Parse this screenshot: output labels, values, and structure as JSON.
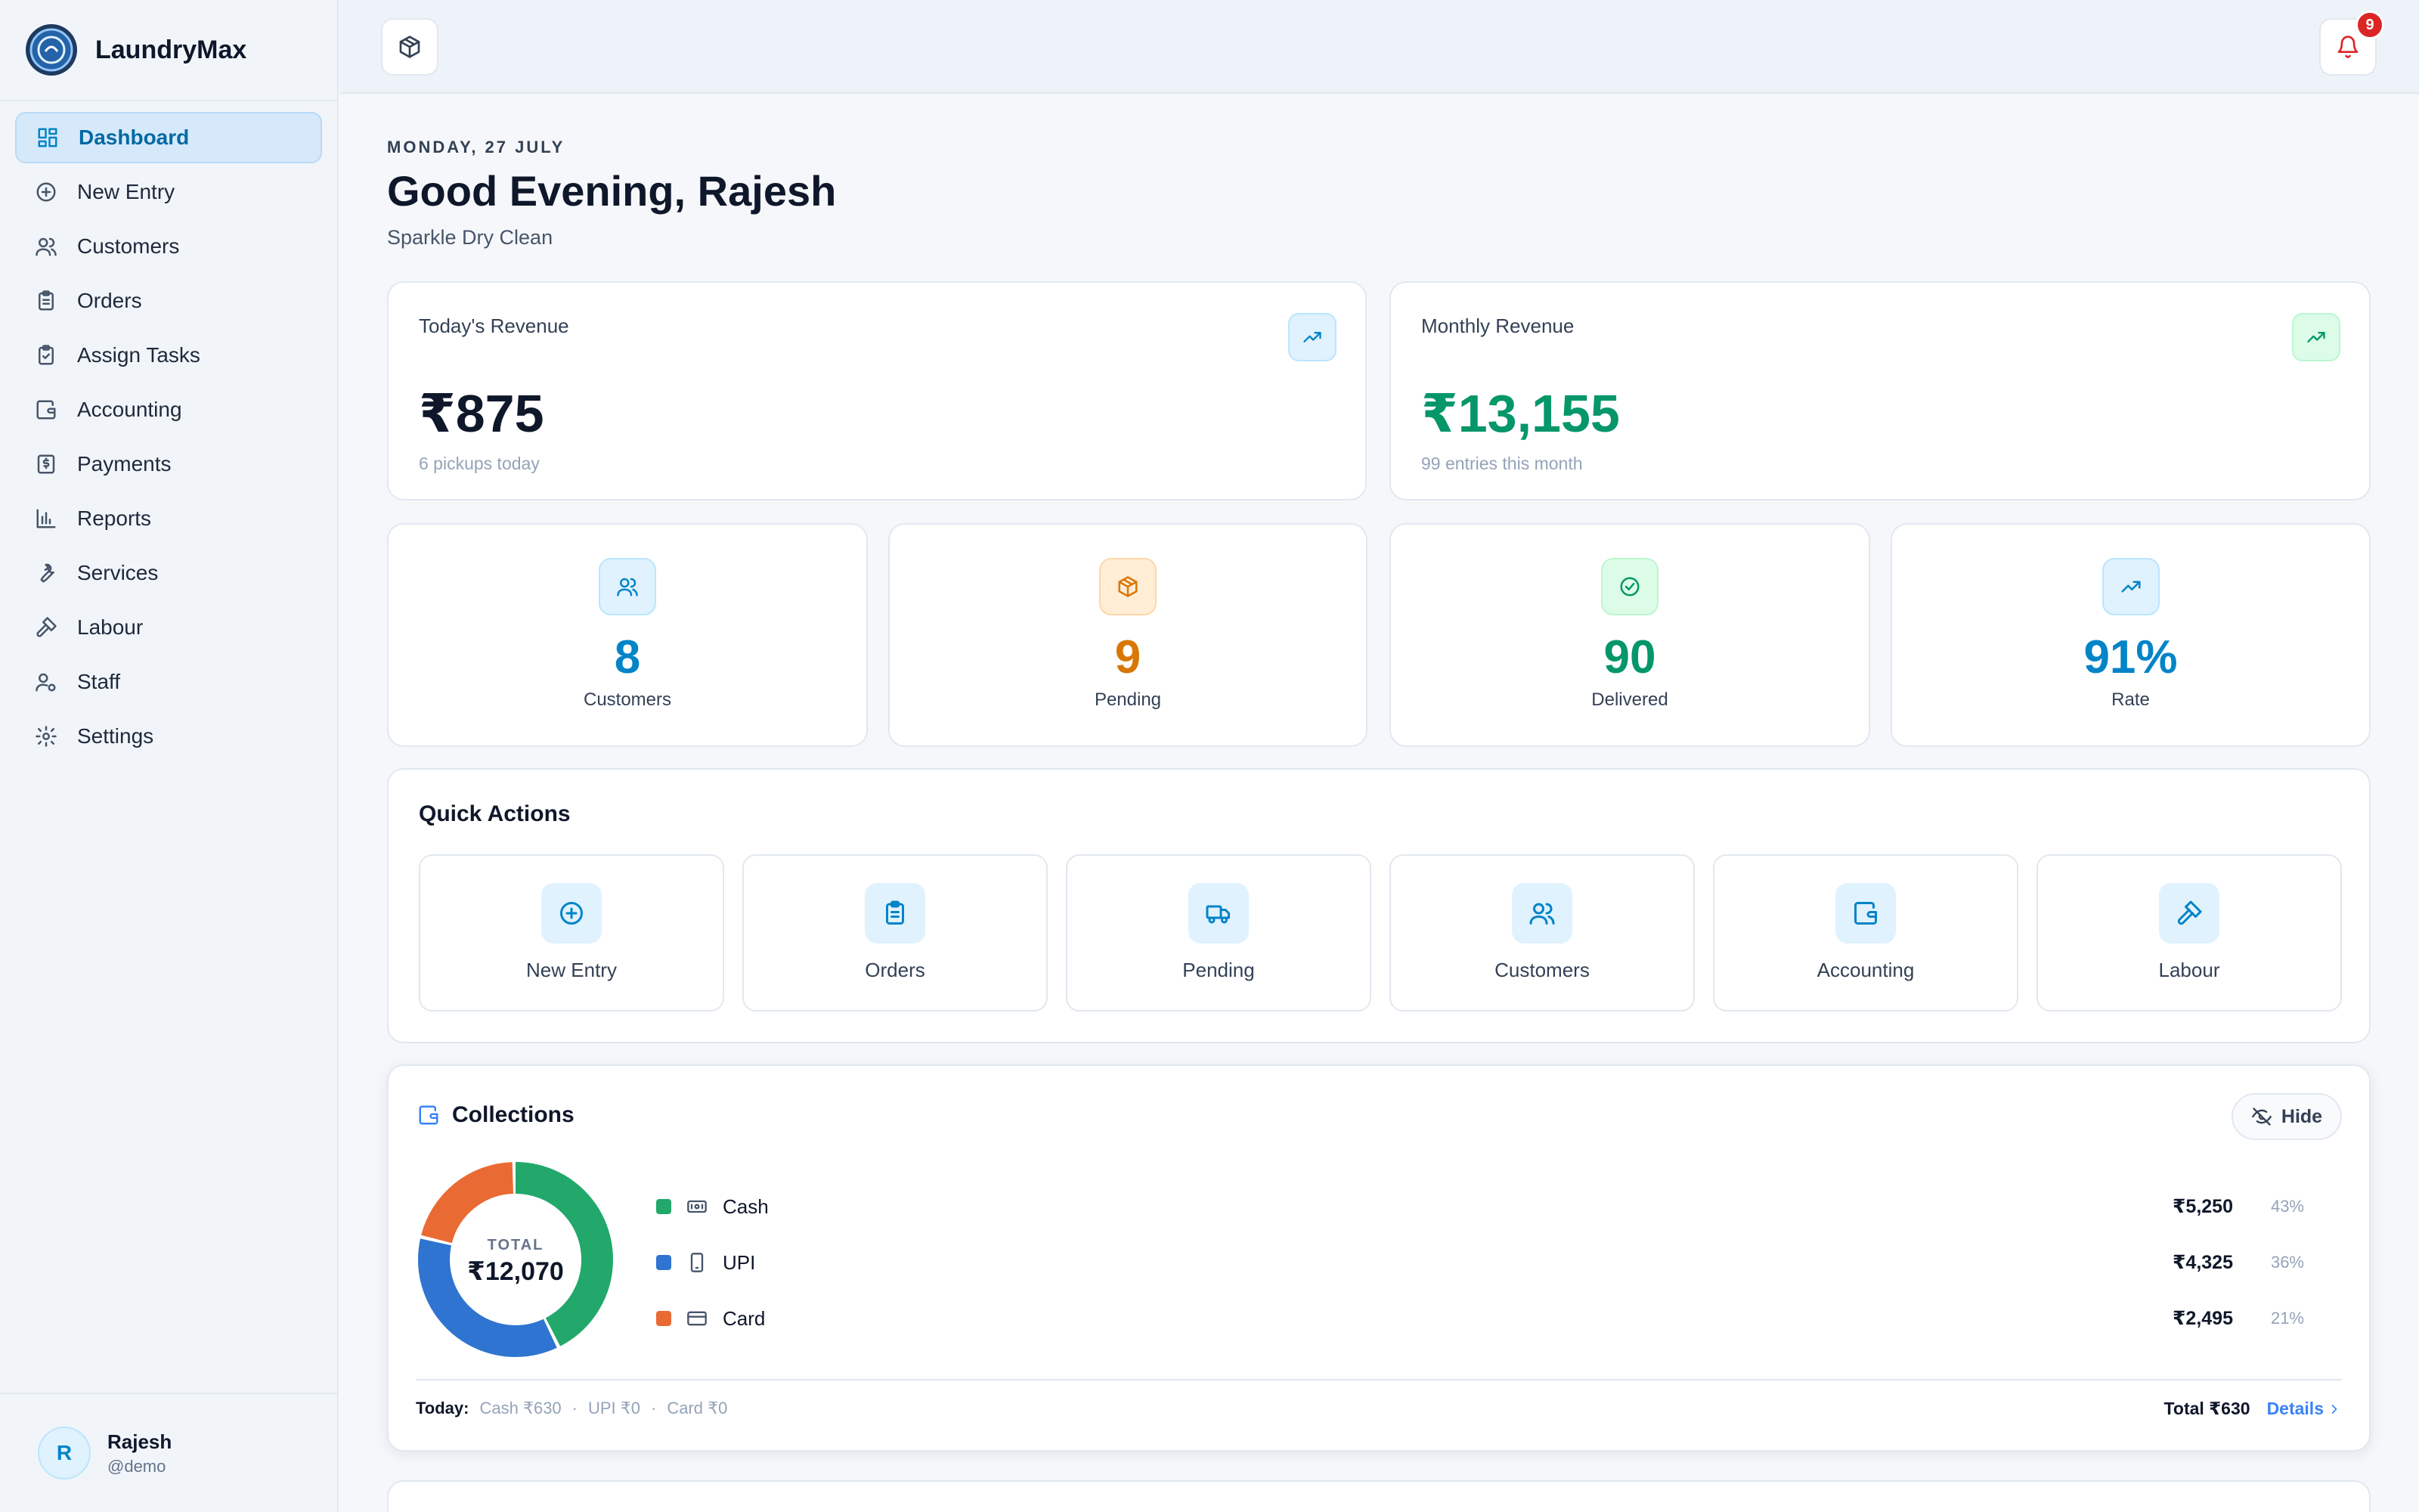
{
  "app": {
    "name": "LaundryMax"
  },
  "sidebar": {
    "items": [
      {
        "label": "Dashboard",
        "icon": "dashboard-icon",
        "active": true
      },
      {
        "label": "New Entry",
        "icon": "plus-circle-icon"
      },
      {
        "label": "Customers",
        "icon": "users-icon"
      },
      {
        "label": "Orders",
        "icon": "clipboard-icon"
      },
      {
        "label": "Assign Tasks",
        "icon": "clipboard-check-icon"
      },
      {
        "label": "Accounting",
        "icon": "wallet-icon"
      },
      {
        "label": "Payments",
        "icon": "dollar-receipt-icon"
      },
      {
        "label": "Reports",
        "icon": "bar-chart-icon"
      },
      {
        "label": "Services",
        "icon": "wrench-icon"
      },
      {
        "label": "Labour",
        "icon": "hammer-icon"
      },
      {
        "label": "Staff",
        "icon": "user-cog-icon"
      },
      {
        "label": "Settings",
        "icon": "gear-icon"
      }
    ],
    "user": {
      "initial": "R",
      "name": "Rajesh",
      "handle": "@demo"
    }
  },
  "topbar": {
    "notifications": "9"
  },
  "header": {
    "date": "MONDAY, 27 JULY",
    "greeting": "Good Evening, Rajesh",
    "business": "Sparkle Dry Clean"
  },
  "revenue": {
    "today": {
      "title": "Today's Revenue",
      "value": "₹875",
      "sub": "6 pickups today",
      "color": "#0f172a"
    },
    "monthly": {
      "title": "Monthly Revenue",
      "value": "₹13,155",
      "sub": "99 entries this month",
      "color": "#059669"
    }
  },
  "stats": [
    {
      "value": "8",
      "label": "Customers",
      "color": "#0284c7",
      "icon": "users-icon"
    },
    {
      "value": "9",
      "label": "Pending",
      "color": "#d97706",
      "icon": "package-icon"
    },
    {
      "value": "90",
      "label": "Delivered",
      "color": "#059669",
      "icon": "check-circle-icon"
    },
    {
      "value": "91%",
      "label": "Rate",
      "color": "#0284c7",
      "icon": "trend-up-icon"
    }
  ],
  "quick_actions": {
    "title": "Quick Actions",
    "items": [
      {
        "label": "New Entry",
        "icon": "plus-circle-icon"
      },
      {
        "label": "Orders",
        "icon": "clipboard-icon"
      },
      {
        "label": "Pending",
        "icon": "truck-icon"
      },
      {
        "label": "Customers",
        "icon": "users-icon"
      },
      {
        "label": "Accounting",
        "icon": "wallet-icon"
      },
      {
        "label": "Labour",
        "icon": "hammer-icon"
      }
    ]
  },
  "collections": {
    "title": "Collections",
    "hide_label": "Hide",
    "total_label": "TOTAL",
    "total": "₹12,070",
    "methods": [
      {
        "name": "Cash",
        "amount": "₹5,250",
        "percent": "43%",
        "share": 43,
        "color": "#22a86b",
        "icon": "cash-icon"
      },
      {
        "name": "UPI",
        "amount": "₹4,325",
        "percent": "36%",
        "share": 36,
        "color": "#2f74d0",
        "icon": "phone-icon"
      },
      {
        "name": "Card",
        "amount": "₹2,495",
        "percent": "21%",
        "share": 21,
        "color": "#ea6a33",
        "icon": "card-icon"
      }
    ],
    "today": {
      "label": "Today:",
      "cash": "Cash ₹630",
      "upi": "UPI ₹0",
      "card": "Card ₹0",
      "sep": "·"
    },
    "today_total": "Total ₹630",
    "details_label": "Details"
  }
}
